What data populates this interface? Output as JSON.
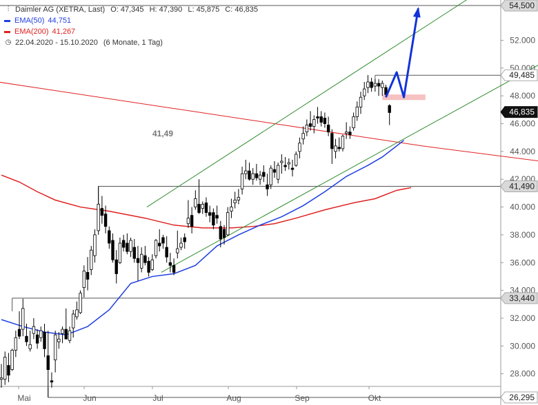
{
  "legend": {
    "title": "Daimler AG (XETRA, Last)",
    "ohlc": {
      "o": "O: 47,345",
      "h": "H: 47,390",
      "l": "L: 45,875",
      "c": "C: 46,835"
    },
    "ema50": {
      "label": "EMA(50)",
      "value": "44,751",
      "color": "#1e3ee0"
    },
    "ema200": {
      "label": "EMA(200)",
      "value": "41,267",
      "color": "#e02020"
    },
    "period": "22.04.2020 - 15.10.2020",
    "interval": "(6 Monate, 1 Tag)"
  },
  "chart_data": {
    "type": "candlestick",
    "x_axis_labels": [
      "Mai",
      "Jun",
      "Jul",
      "Aug",
      "Sep",
      "Okt"
    ],
    "y_ticks": [
      28000,
      30000,
      32000,
      34000,
      36000,
      38000,
      40000,
      42000,
      44000,
      46000,
      48000,
      50000,
      52000
    ],
    "ylim": [
      26000,
      54800
    ],
    "price_tags": [
      {
        "value": "54,500",
        "style": "gray"
      },
      {
        "value": "49,485",
        "style": "white"
      },
      {
        "value": "46,835",
        "style": "black"
      },
      {
        "value": "41,490",
        "style": "gray"
      },
      {
        "value": "33,440",
        "style": "gray"
      },
      {
        "value": "26,295",
        "style": "white"
      }
    ],
    "annotation": "41,49",
    "candles": [
      {
        "o": 27.6,
        "h": 28.7,
        "l": 27.0,
        "c": 27.7
      },
      {
        "o": 27.6,
        "h": 29.6,
        "l": 27.2,
        "c": 29.2
      },
      {
        "o": 28.6,
        "h": 29.5,
        "l": 27.4,
        "c": 27.9
      },
      {
        "o": 28.3,
        "h": 29.8,
        "l": 28.2,
        "c": 29.7
      },
      {
        "o": 29.7,
        "h": 31.1,
        "l": 29.2,
        "c": 30.6
      },
      {
        "o": 31.2,
        "h": 32.5,
        "l": 30.5,
        "c": 30.7
      },
      {
        "o": 31.2,
        "h": 33.4,
        "l": 30.7,
        "c": 32.7
      },
      {
        "o": 30.7,
        "h": 31.6,
        "l": 30.0,
        "c": 30.3
      },
      {
        "o": 29.8,
        "h": 31.1,
        "l": 29.6,
        "c": 30.1
      },
      {
        "o": 30.9,
        "h": 32.0,
        "l": 30.5,
        "c": 31.4
      },
      {
        "o": 30.8,
        "h": 31.2,
        "l": 29.8,
        "c": 30.2
      },
      {
        "o": 30.6,
        "h": 31.4,
        "l": 30.3,
        "c": 31.1
      },
      {
        "o": 31.0,
        "h": 31.6,
        "l": 29.2,
        "c": 29.8
      },
      {
        "o": 29.3,
        "h": 31.1,
        "l": 26.3,
        "c": 28.3
      },
      {
        "o": 27.5,
        "h": 28.1,
        "l": 27.0,
        "c": 27.4
      },
      {
        "o": 29.0,
        "h": 31.1,
        "l": 28.1,
        "c": 30.8
      },
      {
        "o": 30.3,
        "h": 31.0,
        "l": 29.8,
        "c": 30.5
      },
      {
        "o": 30.9,
        "h": 31.4,
        "l": 30.2,
        "c": 31.2
      },
      {
        "o": 31.2,
        "h": 32.7,
        "l": 31.0,
        "c": 30.5
      },
      {
        "o": 30.4,
        "h": 31.4,
        "l": 30.2,
        "c": 31.1
      },
      {
        "o": 31.3,
        "h": 32.6,
        "l": 30.6,
        "c": 32.3
      },
      {
        "o": 32.1,
        "h": 33.2,
        "l": 31.9,
        "c": 32.6
      },
      {
        "o": 32.4,
        "h": 34.0,
        "l": 32.3,
        "c": 33.8
      },
      {
        "o": 34.2,
        "h": 35.8,
        "l": 33.5,
        "c": 35.4
      },
      {
        "o": 35.3,
        "h": 36.4,
        "l": 34.0,
        "c": 34.8
      },
      {
        "o": 35.5,
        "h": 37.2,
        "l": 35.1,
        "c": 36.9
      },
      {
        "o": 36.5,
        "h": 38.4,
        "l": 36.0,
        "c": 38.0
      },
      {
        "o": 38.3,
        "h": 41.5,
        "l": 38.0,
        "c": 40.2
      },
      {
        "o": 39.9,
        "h": 40.8,
        "l": 38.8,
        "c": 39.4
      },
      {
        "o": 39.5,
        "h": 40.1,
        "l": 38.1,
        "c": 38.6
      },
      {
        "o": 38.3,
        "h": 38.6,
        "l": 37.0,
        "c": 37.4
      },
      {
        "o": 37.6,
        "h": 38.1,
        "l": 36.0,
        "c": 36.2
      },
      {
        "o": 36.2,
        "h": 36.9,
        "l": 34.5,
        "c": 35.2
      },
      {
        "o": 36.0,
        "h": 37.8,
        "l": 35.9,
        "c": 37.4
      },
      {
        "o": 37.6,
        "h": 38.0,
        "l": 36.8,
        "c": 37.1
      },
      {
        "o": 37.4,
        "h": 38.1,
        "l": 36.6,
        "c": 36.8
      },
      {
        "o": 36.8,
        "h": 37.8,
        "l": 36.4,
        "c": 37.6
      },
      {
        "o": 37.1,
        "h": 37.7,
        "l": 36.0,
        "c": 36.3
      },
      {
        "o": 36.3,
        "h": 37.2,
        "l": 34.7,
        "c": 36.0
      },
      {
        "o": 35.6,
        "h": 37.1,
        "l": 35.3,
        "c": 36.6
      },
      {
        "o": 36.5,
        "h": 37.2,
        "l": 35.8,
        "c": 36.0
      },
      {
        "o": 36.1,
        "h": 36.4,
        "l": 35.0,
        "c": 35.3
      },
      {
        "o": 35.5,
        "h": 36.6,
        "l": 35.4,
        "c": 36.2
      },
      {
        "o": 36.5,
        "h": 37.7,
        "l": 36.3,
        "c": 37.6
      },
      {
        "o": 37.4,
        "h": 38.4,
        "l": 36.8,
        "c": 37.2
      },
      {
        "o": 37.8,
        "h": 38.0,
        "l": 37.0,
        "c": 37.4
      },
      {
        "o": 37.1,
        "h": 37.9,
        "l": 36.0,
        "c": 36.4
      },
      {
        "o": 36.0,
        "h": 36.7,
        "l": 35.3,
        "c": 35.8
      },
      {
        "o": 35.8,
        "h": 36.3,
        "l": 35.1,
        "c": 35.3
      },
      {
        "o": 36.7,
        "h": 38.3,
        "l": 36.3,
        "c": 37.0
      },
      {
        "o": 37.1,
        "h": 37.8,
        "l": 36.9,
        "c": 37.4
      },
      {
        "o": 37.8,
        "h": 38.1,
        "l": 37.0,
        "c": 37.5
      },
      {
        "o": 38.8,
        "h": 40.5,
        "l": 38.5,
        "c": 39.2
      },
      {
        "o": 39.4,
        "h": 40.0,
        "l": 38.1,
        "c": 38.6
      },
      {
        "o": 40.0,
        "h": 41.2,
        "l": 39.8,
        "c": 40.6
      },
      {
        "o": 40.2,
        "h": 42.0,
        "l": 39.5,
        "c": 39.6
      },
      {
        "o": 39.9,
        "h": 40.4,
        "l": 39.5,
        "c": 40.2
      },
      {
        "o": 40.3,
        "h": 40.7,
        "l": 39.3,
        "c": 39.6
      },
      {
        "o": 39.6,
        "h": 40.1,
        "l": 38.9,
        "c": 39.4
      },
      {
        "o": 39.6,
        "h": 39.9,
        "l": 38.4,
        "c": 38.7
      },
      {
        "o": 39.4,
        "h": 40.1,
        "l": 38.8,
        "c": 39.2
      },
      {
        "o": 38.6,
        "h": 39.0,
        "l": 37.1,
        "c": 37.7
      },
      {
        "o": 38.4,
        "h": 38.7,
        "l": 37.3,
        "c": 37.8
      },
      {
        "o": 38.0,
        "h": 40.0,
        "l": 37.9,
        "c": 39.6
      },
      {
        "o": 39.7,
        "h": 40.6,
        "l": 39.2,
        "c": 40.0
      },
      {
        "o": 40.3,
        "h": 41.1,
        "l": 39.9,
        "c": 40.5
      },
      {
        "o": 40.5,
        "h": 41.3,
        "l": 40.2,
        "c": 40.7
      },
      {
        "o": 41.3,
        "h": 42.9,
        "l": 40.9,
        "c": 42.4
      },
      {
        "o": 42.4,
        "h": 43.4,
        "l": 42.0,
        "c": 42.6
      },
      {
        "o": 42.6,
        "h": 43.2,
        "l": 41.9,
        "c": 42.0
      },
      {
        "o": 42.0,
        "h": 42.8,
        "l": 41.6,
        "c": 42.4
      },
      {
        "o": 42.4,
        "h": 43.1,
        "l": 41.9,
        "c": 42.1
      },
      {
        "o": 42.0,
        "h": 42.6,
        "l": 41.6,
        "c": 42.3
      },
      {
        "o": 42.5,
        "h": 43.0,
        "l": 41.8,
        "c": 42.2
      },
      {
        "o": 41.6,
        "h": 42.4,
        "l": 40.8,
        "c": 41.3
      },
      {
        "o": 41.6,
        "h": 43.0,
        "l": 41.3,
        "c": 42.8
      },
      {
        "o": 42.7,
        "h": 43.3,
        "l": 42.1,
        "c": 42.5
      },
      {
        "o": 42.0,
        "h": 43.2,
        "l": 41.7,
        "c": 43.0
      },
      {
        "o": 43.2,
        "h": 43.8,
        "l": 42.4,
        "c": 43.3
      },
      {
        "o": 43.0,
        "h": 43.6,
        "l": 42.6,
        "c": 42.9
      },
      {
        "o": 43.1,
        "h": 43.5,
        "l": 42.7,
        "c": 43.2
      },
      {
        "o": 42.8,
        "h": 43.4,
        "l": 42.2,
        "c": 42.7
      },
      {
        "o": 43.0,
        "h": 44.0,
        "l": 42.9,
        "c": 43.8
      },
      {
        "o": 44.0,
        "h": 45.0,
        "l": 43.5,
        "c": 44.6
      },
      {
        "o": 44.9,
        "h": 45.8,
        "l": 44.5,
        "c": 45.3
      },
      {
        "o": 45.4,
        "h": 46.3,
        "l": 45.1,
        "c": 45.9
      },
      {
        "o": 46.0,
        "h": 46.9,
        "l": 45.5,
        "c": 45.8
      },
      {
        "o": 45.8,
        "h": 46.6,
        "l": 45.3,
        "c": 46.3
      },
      {
        "o": 46.5,
        "h": 47.2,
        "l": 46.0,
        "c": 46.4
      },
      {
        "o": 46.5,
        "h": 46.9,
        "l": 45.8,
        "c": 46.1
      },
      {
        "o": 46.4,
        "h": 46.8,
        "l": 45.7,
        "c": 46.0
      },
      {
        "o": 45.9,
        "h": 46.5,
        "l": 45.1,
        "c": 45.4
      },
      {
        "o": 45.3,
        "h": 45.6,
        "l": 43.1,
        "c": 44.2
      },
      {
        "o": 44.0,
        "h": 44.9,
        "l": 43.5,
        "c": 44.4
      },
      {
        "o": 44.3,
        "h": 45.0,
        "l": 44.0,
        "c": 44.2
      },
      {
        "o": 44.2,
        "h": 45.2,
        "l": 44.0,
        "c": 45.1
      },
      {
        "o": 45.3,
        "h": 46.1,
        "l": 44.9,
        "c": 45.4
      },
      {
        "o": 45.4,
        "h": 45.8,
        "l": 44.9,
        "c": 45.2
      },
      {
        "o": 45.7,
        "h": 46.8,
        "l": 45.5,
        "c": 46.5
      },
      {
        "o": 46.5,
        "h": 47.6,
        "l": 46.2,
        "c": 47.2
      },
      {
        "o": 47.2,
        "h": 48.3,
        "l": 46.7,
        "c": 47.9
      },
      {
        "o": 48.0,
        "h": 49.0,
        "l": 47.7,
        "c": 48.5
      },
      {
        "o": 48.6,
        "h": 49.5,
        "l": 48.2,
        "c": 49.0
      },
      {
        "o": 49.0,
        "h": 49.3,
        "l": 48.3,
        "c": 48.6
      },
      {
        "o": 48.7,
        "h": 49.2,
        "l": 48.3,
        "c": 48.9
      },
      {
        "o": 48.9,
        "h": 49.2,
        "l": 48.0,
        "c": 48.7
      },
      {
        "o": 48.6,
        "h": 49.1,
        "l": 48.0,
        "c": 48.9
      },
      {
        "o": 48.6,
        "h": 48.8,
        "l": 47.9,
        "c": 48.1
      },
      {
        "o": 47.3,
        "h": 47.4,
        "l": 45.9,
        "c": 46.8
      }
    ],
    "ema50": [
      [
        0,
        31.9
      ],
      [
        6,
        31.4
      ],
      [
        12,
        31.0
      ],
      [
        18,
        30.8
      ],
      [
        24,
        31.4
      ],
      [
        30,
        32.6
      ],
      [
        36,
        34.5
      ],
      [
        42,
        35.0
      ],
      [
        48,
        35.2
      ],
      [
        54,
        35.8
      ],
      [
        60,
        37.2
      ],
      [
        66,
        38.0
      ],
      [
        72,
        38.7
      ],
      [
        78,
        39.3
      ],
      [
        84,
        40.1
      ],
      [
        90,
        41.1
      ],
      [
        96,
        42.2
      ],
      [
        102,
        43.0
      ],
      [
        106,
        43.6
      ],
      [
        112,
        44.8
      ]
    ],
    "ema200": [
      [
        0,
        42.3
      ],
      [
        5,
        41.8
      ],
      [
        10,
        41.1
      ],
      [
        15,
        40.5
      ],
      [
        22,
        40.0
      ],
      [
        30,
        39.7
      ],
      [
        40,
        39.2
      ],
      [
        48,
        38.7
      ],
      [
        56,
        38.5
      ],
      [
        64,
        38.5
      ],
      [
        70,
        38.6
      ],
      [
        76,
        38.8
      ],
      [
        82,
        39.2
      ],
      [
        90,
        39.8
      ],
      [
        98,
        40.3
      ],
      [
        104,
        40.6
      ],
      [
        110,
        41.2
      ],
      [
        114,
        41.4
      ]
    ],
    "trend_line": [
      [
        -24,
        49.9
      ],
      [
        117,
        44.4
      ],
      [
        180,
        42.3
      ]
    ],
    "channel_lower": [
      [
        44.5,
        35.3
      ],
      [
        150,
        50.3
      ]
    ],
    "channel_upper": [
      [
        40.5,
        40.0
      ],
      [
        130,
        55.0
      ]
    ],
    "support_levels": [
      {
        "value": 41.49,
        "from_index": 27
      },
      {
        "value": 33.44,
        "from_index": 3
      },
      {
        "value": 26.295,
        "from_index": 13
      }
    ],
    "resistance_levels": [
      {
        "value": 54.5,
        "from_index": 0
      },
      {
        "value": 49.485,
        "from_index": 104
      }
    ],
    "zone": {
      "from": 47.7,
      "to": 48.1,
      "start_index": 106,
      "end_index": 118
    },
    "forecast_path": [
      [
        107,
        47.9
      ],
      [
        110,
        49.7
      ],
      [
        112,
        47.9
      ],
      [
        116,
        54.3
      ]
    ]
  }
}
